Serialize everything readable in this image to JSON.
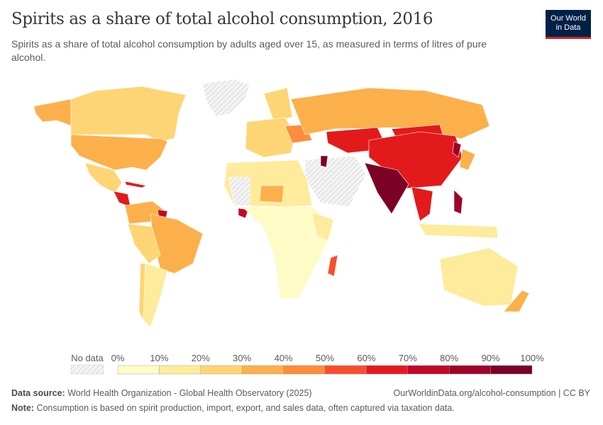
{
  "header": {
    "title": "Spirits as a share of total alcohol consumption, 2016",
    "subtitle": "Spirits as a share of total alcohol consumption by adults aged over 15, as measured in terms of litres of pure alcohol.",
    "logo_line1": "Our World",
    "logo_line2": "in Data"
  },
  "legend": {
    "no_data_label": "No data",
    "ticks": [
      "0%",
      "10%",
      "20%",
      "30%",
      "40%",
      "50%",
      "60%",
      "70%",
      "80%",
      "90%",
      "100%"
    ],
    "colors": [
      "#fffbc7",
      "#feeb9b",
      "#fed574",
      "#fcb04b",
      "#fd8d3c",
      "#f94d2e",
      "#e31a1c",
      "#c30629",
      "#a00228",
      "#7d0026"
    ],
    "no_data_color": "#e8e8e8"
  },
  "footer": {
    "source_label": "Data source:",
    "source_text": "World Health Organization - Global Health Observatory (2025)",
    "url": "OurWorldinData.org/alcohol-consumption | CC BY",
    "note_label": "Note:",
    "note_text": "Consumption is based on spirit production, import, export, and sales data, often captured via taxation data."
  }
}
